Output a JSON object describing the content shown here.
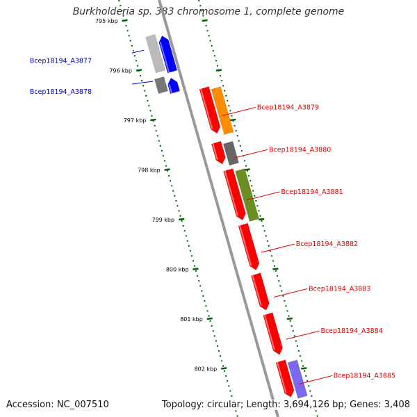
{
  "title": "Burkholderia sp. 383 chromosome 1, complete genome",
  "accession": "Accession: NC_007510",
  "summary": "Topology: circular; Length: 3,694,126 bp; Genes: 3,408",
  "colors": {
    "cds_reverse": "#ff0000",
    "backbone": "#999999",
    "tick": "#006400",
    "label_forward": "#0000cc",
    "label_reverse": "#dd0000"
  },
  "ticks": [
    {
      "label": "795 kbp",
      "kbp": 795
    },
    {
      "label": "796 kbp",
      "kbp": 796
    },
    {
      "label": "797 kbp",
      "kbp": 797
    },
    {
      "label": "798 kbp",
      "kbp": 798
    },
    {
      "label": "799 kbp",
      "kbp": 799
    },
    {
      "label": "800 kbp",
      "kbp": 800
    },
    {
      "label": "801 kbp",
      "kbp": 801
    },
    {
      "label": "802 kbp",
      "kbp": 802
    }
  ],
  "genes": [
    {
      "name": "Bcep18194_A3877",
      "strand": "+",
      "color": "#0000ff",
      "inner": "#bbbbbb",
      "start": 795.3,
      "end": 796.05
    },
    {
      "name": "Bcep18194_A3878",
      "strand": "+",
      "color": "#0000ff",
      "inner": "#777777",
      "start": 796.15,
      "end": 796.45
    },
    {
      "name": "Bcep18194_A3879",
      "strand": "-",
      "color": "#ff0000",
      "inner": "#ff8c00",
      "start": 796.35,
      "end": 797.3
    },
    {
      "name": "Bcep18194_A3880",
      "strand": "-",
      "color": "#ff0000",
      "inner": "#666666",
      "start": 797.45,
      "end": 797.9
    },
    {
      "name": "Bcep18194_A3881",
      "strand": "-",
      "color": "#ff0000",
      "inner": "#6b8e23",
      "start": 798.0,
      "end": 799.05
    },
    {
      "name": "Bcep18194_A3882",
      "strand": "-",
      "color": "#ff0000",
      "inner": "",
      "start": 799.1,
      "end": 800.05
    },
    {
      "name": "Bcep18194_A3883",
      "strand": "-",
      "color": "#ff0000",
      "inner": "",
      "start": 800.1,
      "end": 800.85
    },
    {
      "name": "Bcep18194_A3884",
      "strand": "-",
      "color": "#ff0000",
      "inner": "",
      "start": 800.9,
      "end": 801.75
    },
    {
      "name": "Bcep18194_A3885",
      "strand": "-",
      "color": "#ff0000",
      "inner": "#7b68ee",
      "start": 801.85,
      "end": 802.6
    }
  ]
}
